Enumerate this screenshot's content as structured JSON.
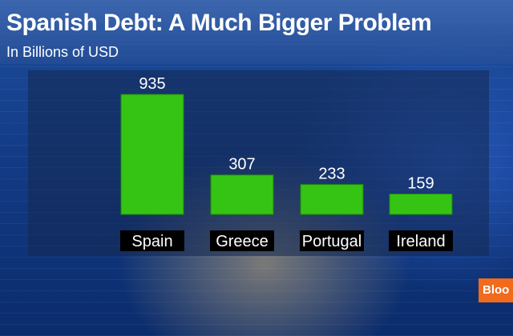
{
  "title": "Spanish Debt: A Much Bigger Problem",
  "subtitle": "In Billions of USD",
  "brand_text": "Bloo",
  "colors": {
    "bar": "#35c414",
    "bar_edge": "#1f8a08",
    "label_bg": "#000000",
    "text": "#ffffff",
    "brand": "#f26a1b"
  },
  "chart_data": {
    "type": "bar",
    "title": "Spanish Debt: A Much Bigger Problem",
    "subtitle": "In Billions of USD",
    "categories": [
      "Spain",
      "Greece",
      "Portugal",
      "Ireland"
    ],
    "values": [
      935,
      307,
      233,
      159
    ],
    "data_labels": [
      "935",
      "307",
      "233",
      "159"
    ],
    "ylim": [
      0,
      1000
    ],
    "grid": false,
    "legend": "none"
  }
}
